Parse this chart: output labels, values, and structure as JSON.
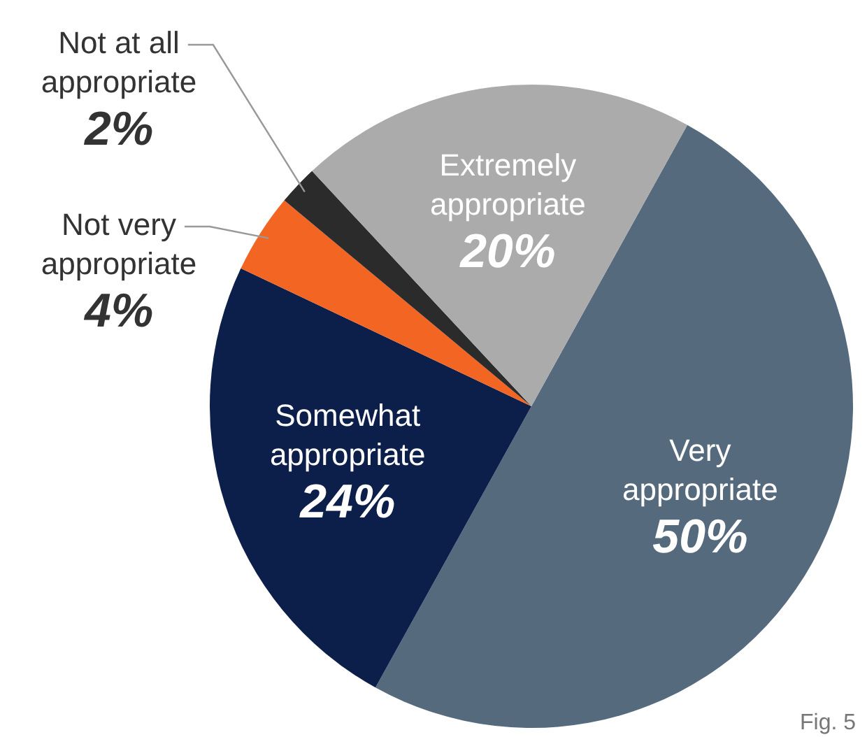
{
  "chart_data": {
    "type": "pie",
    "categories": [
      "Very appropriate",
      "Somewhat appropriate",
      "Not very appropriate",
      "Not at all appropriate",
      "Extremely appropriate"
    ],
    "values": [
      50,
      24,
      4,
      2,
      20
    ],
    "colors": [
      "#566a7e",
      "#0c1f4a",
      "#f26522",
      "#2b2b2b",
      "#ababab"
    ],
    "value_labels": [
      "50%",
      "24%",
      "4%",
      "2%",
      "20%"
    ],
    "legend": false,
    "annotations": [
      "Fig. 5"
    ]
  }
}
